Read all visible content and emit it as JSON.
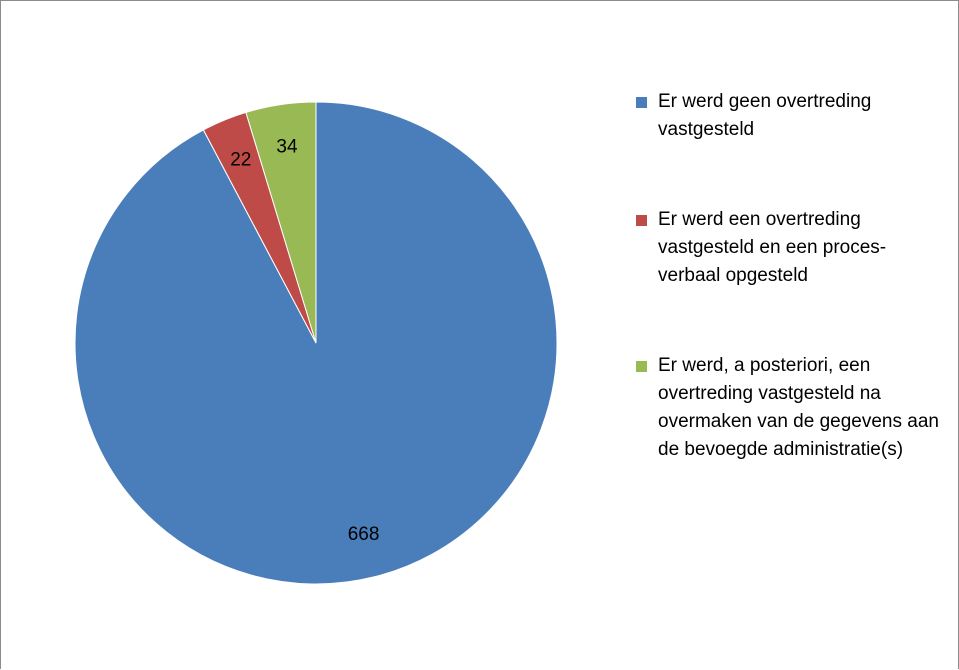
{
  "chart_data": {
    "type": "pie",
    "categories": [
      "Er werd geen overtreding vastgesteld",
      "Er werd een overtreding vastgesteld en een proces-verbaal opgesteld",
      "Er werd, a posteriori, een overtreding vastgesteld na overmaken van de gegevens aan de bevoegde administratie(s)"
    ],
    "values": [
      668,
      22,
      34
    ],
    "colors": [
      "#4a7ebb",
      "#be4b48",
      "#98b954"
    ],
    "legend": "right"
  }
}
